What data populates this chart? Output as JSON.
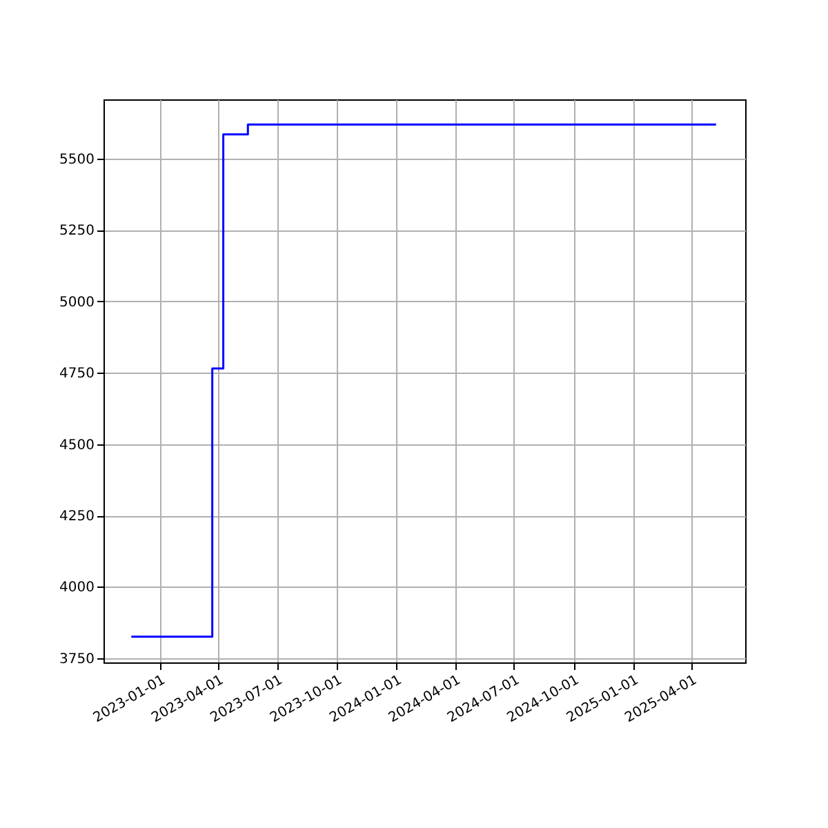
{
  "chart_data": {
    "type": "step",
    "x": [
      "2022-11-18",
      "2023-03-23",
      "2023-04-09",
      "2023-05-17",
      "2025-05-09"
    ],
    "series": [
      {
        "color": "#0000ff",
        "values": [
          3825,
          4765,
          5585,
          5620,
          5620
        ]
      }
    ],
    "xlim": [
      "2022-10-06",
      "2025-06-23"
    ],
    "xticks": [
      "2023-01-01",
      "2023-04-01",
      "2023-07-01",
      "2023-10-01",
      "2024-01-01",
      "2024-04-01",
      "2024-07-01",
      "2024-10-01",
      "2025-01-01",
      "2025-04-01"
    ],
    "ylim": [
      3735,
      5708
    ],
    "yticks": [
      3750,
      4000,
      4250,
      4500,
      4750,
      5000,
      5250,
      5500
    ],
    "grid": true,
    "marker": "none",
    "line_style": "solid"
  }
}
